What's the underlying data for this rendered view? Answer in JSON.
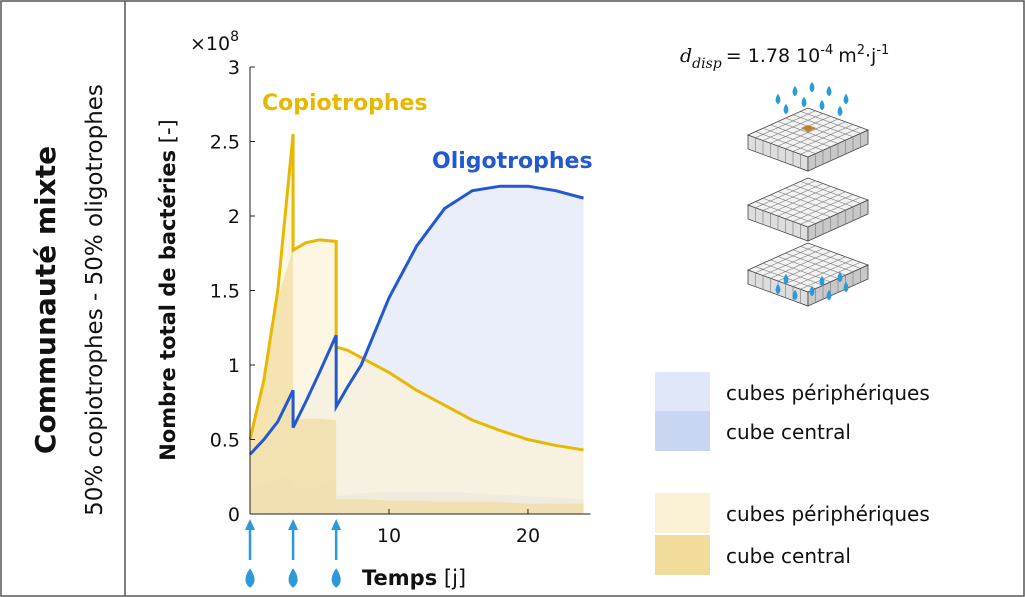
{
  "chart_data": {
    "type": "area",
    "title": "Communauté mixte",
    "subtitle": "50% copiotrophes - 50% oligotrophes",
    "y_label": "Nombre total de bactéries",
    "y_unit": "[-]",
    "x_label": "Temps",
    "x_unit": "[j]",
    "y_multiplier": {
      "base": "×10",
      "exp": "8"
    },
    "diffusion": {
      "symbol": "d",
      "subscript": "disp",
      "text": "= 1.78 10",
      "exp": "-4",
      "unit": "m",
      "unit_exp": "2",
      "unit2": "·j",
      "unit2_exp": "-1"
    },
    "xlim": [
      0,
      24.5
    ],
    "xticks": [
      10,
      20
    ],
    "ylim": [
      0,
      3
    ],
    "yticks": [
      0,
      0.5,
      1,
      1.5,
      2,
      2.5,
      3
    ],
    "events": [
      0,
      3.1,
      6.2
    ],
    "x": [
      0,
      1,
      2,
      3.1,
      3.1,
      4,
      5,
      6.2,
      6.2,
      7,
      8,
      10,
      12,
      14,
      16,
      18,
      20,
      22,
      24
    ],
    "series": [
      {
        "name": "Copiotrophes",
        "color": "#e8b800",
        "values": [
          0.5,
          0.9,
          1.5,
          2.55,
          1.77,
          1.82,
          1.84,
          1.83,
          1.12,
          1.1,
          1.05,
          0.95,
          0.83,
          0.73,
          0.63,
          0.56,
          0.5,
          0.46,
          0.43
        ]
      },
      {
        "name": "Oligotrophes",
        "color": "#2258d2",
        "values": [
          0.4,
          0.5,
          0.62,
          0.83,
          0.58,
          0.75,
          0.95,
          1.2,
          0.72,
          0.85,
          1.0,
          1.45,
          1.8,
          2.05,
          2.17,
          2.2,
          2.2,
          2.17,
          2.12
        ]
      }
    ],
    "areas": [
      {
        "name": "cubes périphériques",
        "color": "#dfe7f8",
        "values": [
          0.4,
          0.5,
          0.62,
          0.83,
          0.58,
          0.75,
          0.95,
          1.2,
          0.72,
          0.85,
          1.0,
          1.45,
          1.8,
          2.05,
          2.17,
          2.2,
          2.2,
          2.17,
          2.12
        ]
      },
      {
        "name": "cube central",
        "color": "#c9d6f2",
        "values": [
          0.18,
          0.2,
          0.23,
          0.28,
          0.15,
          0.17,
          0.2,
          0.22,
          0.12,
          0.13,
          0.14,
          0.15,
          0.15,
          0.15,
          0.14,
          0.13,
          0.12,
          0.11,
          0.1
        ]
      },
      {
        "name": "cubes périphériques",
        "color": "#fbf2d6",
        "values": [
          0.5,
          0.9,
          1.5,
          2.55,
          1.77,
          1.82,
          1.84,
          1.83,
          1.12,
          1.1,
          1.05,
          0.95,
          0.83,
          0.73,
          0.63,
          0.56,
          0.5,
          0.46,
          0.43
        ]
      },
      {
        "name": "cube central",
        "color": "#f2dc9c",
        "values": [
          0.45,
          0.9,
          1.45,
          1.78,
          0.63,
          0.64,
          0.64,
          0.63,
          0.1,
          0.1,
          0.1,
          0.09,
          0.09,
          0.08,
          0.08,
          0.08,
          0.07,
          0.07,
          0.07
        ]
      }
    ]
  }
}
